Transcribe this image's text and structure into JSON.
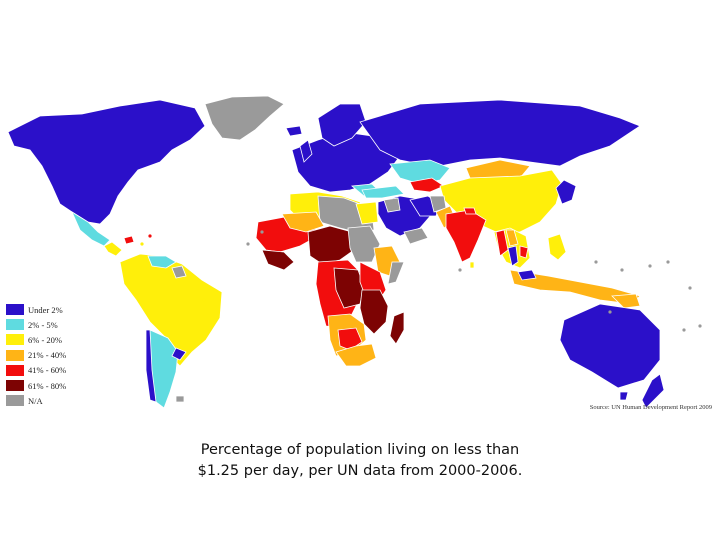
{
  "colors": {
    "under2": "#2b10c9",
    "c2_5": "#5fdbe0",
    "c6_20": "#ffef0a",
    "c21_40": "#ffb416",
    "c41_60": "#f20d0d",
    "c61_80": "#7d0303",
    "na": "#9a9a9a"
  },
  "legend": [
    {
      "label": "Under 2%",
      "color": "#2b10c9"
    },
    {
      "label": "2% - 5%",
      "color": "#5fdbe0"
    },
    {
      "label": "6% - 20%",
      "color": "#ffef0a"
    },
    {
      "label": "21% - 40%",
      "color": "#ffb416"
    },
    {
      "label": "41% - 60%",
      "color": "#f20d0d"
    },
    {
      "label": "61% - 80%",
      "color": "#7d0303"
    },
    {
      "label": "N/A",
      "color": "#9a9a9a"
    }
  ],
  "source": "Source: UN Human Development Report 2009",
  "caption": {
    "line1": "Percentage of population living on less than",
    "line2": "$1.25 per day, per UN data from 2000-2006."
  }
}
